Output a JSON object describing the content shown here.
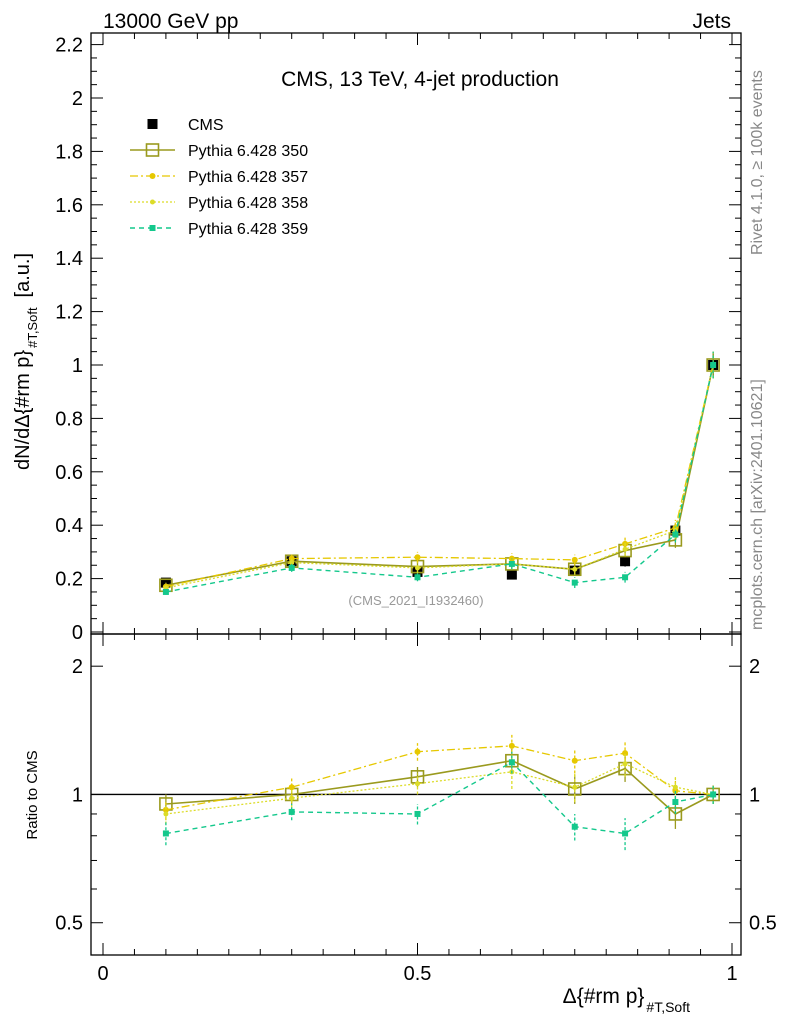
{
  "header": {
    "left": "13000 GeV pp",
    "right": "Jets"
  },
  "side_labels": {
    "rivet": "Rivet 4.1.0, ≥ 100k events",
    "mcplots": "mcplots.cern.ch [arXiv:2401.10621]"
  },
  "colors": {
    "cms": "#000000",
    "p350": "#9a9a1e",
    "p357": "#e6c800",
    "p358": "#dcdc28",
    "p359": "#14c88c"
  },
  "chart_data": [
    {
      "type": "line",
      "panel": "main",
      "title": "CMS, 13 TeV, 4-jet production",
      "ylabel": "dN/dΔ{#rm p}",
      "ylabel_sub": "#T,Soft",
      "ylabel_unit": "[a.u.]",
      "watermark": "(CMS_2021_I1932460)",
      "xlim": [
        0,
        1
      ],
      "ylim": [
        0,
        2.25
      ],
      "yticks": [
        0,
        0.2,
        0.4,
        0.6,
        0.8,
        1,
        1.2,
        1.4,
        1.6,
        1.8,
        2,
        2.2
      ],
      "ytick_labels": [
        "0",
        "0.2",
        "0.4",
        "0.6",
        "0.8",
        "1",
        "1.2",
        "1.4",
        "1.6",
        "1.8",
        "2",
        "2.2"
      ],
      "x": [
        0.1,
        0.3,
        0.5,
        0.65,
        0.75,
        0.83,
        0.91,
        0.97
      ],
      "series": [
        {
          "key": "cms",
          "name": "CMS",
          "values": [
            0.185,
            0.265,
            0.225,
            0.215,
            0.23,
            0.265,
            0.38,
            1.0
          ],
          "errors": [
            0.015,
            0.02,
            0.02,
            0.015,
            0.02,
            0.02,
            0.025,
            0.04
          ]
        },
        {
          "key": "p350",
          "name": "Pythia 6.428 350",
          "values": [
            0.175,
            0.265,
            0.245,
            0.255,
            0.235,
            0.305,
            0.345,
            1.0
          ],
          "errors": [
            0.01,
            0.015,
            0.02,
            0.02,
            0.02,
            0.025,
            0.03,
            0.05
          ]
        },
        {
          "key": "p357",
          "name": "Pythia 6.428 357",
          "values": [
            0.17,
            0.275,
            0.28,
            0.275,
            0.27,
            0.33,
            0.39,
            1.0
          ],
          "errors": [
            0.01,
            0.015,
            0.02,
            0.02,
            0.02,
            0.025,
            0.03,
            0.05
          ]
        },
        {
          "key": "p358",
          "name": "Pythia 6.428 358",
          "values": [
            0.165,
            0.26,
            0.24,
            0.255,
            0.235,
            0.31,
            0.38,
            1.0
          ],
          "errors": [
            0.01,
            0.015,
            0.02,
            0.02,
            0.02,
            0.025,
            0.03,
            0.05
          ]
        },
        {
          "key": "p359",
          "name": "Pythia 6.428 359",
          "values": [
            0.15,
            0.24,
            0.205,
            0.255,
            0.185,
            0.205,
            0.365,
            1.0
          ],
          "errors": [
            0.01,
            0.015,
            0.015,
            0.02,
            0.02,
            0.02,
            0.03,
            0.05
          ]
        }
      ]
    },
    {
      "type": "line",
      "panel": "ratio",
      "ylabel": "Ratio to CMS",
      "xlabel": "Δ{#rm p}",
      "xlabel_sub": "#T,Soft",
      "xlim": [
        0,
        1
      ],
      "ylim": [
        0.42,
        2.38
      ],
      "log_y": true,
      "reference": 1,
      "xticks": [
        0,
        0.5,
        1
      ],
      "xtick_labels": [
        "0",
        "0.5",
        "1"
      ],
      "yticks": [
        0.5,
        1,
        2
      ],
      "ytick_labels": [
        "0.5",
        "1",
        "2"
      ],
      "x": [
        0.1,
        0.3,
        0.5,
        0.65,
        0.75,
        0.83,
        0.91,
        0.97
      ],
      "series": [
        {
          "key": "p350",
          "name": "Pythia 6.428 350",
          "values": [
            0.95,
            1.0,
            1.1,
            1.2,
            1.03,
            1.15,
            0.9,
            1.0
          ],
          "errors": [
            0.05,
            0.05,
            0.06,
            0.08,
            0.08,
            0.08,
            0.07,
            0.05
          ]
        },
        {
          "key": "p357",
          "name": "Pythia 6.428 357",
          "values": [
            0.92,
            1.04,
            1.26,
            1.3,
            1.2,
            1.25,
            1.02,
            1.0
          ],
          "errors": [
            0.05,
            0.05,
            0.06,
            0.08,
            0.08,
            0.08,
            0.07,
            0.05
          ]
        },
        {
          "key": "p358",
          "name": "Pythia 6.428 358",
          "values": [
            0.9,
            0.98,
            1.06,
            1.13,
            1.04,
            1.18,
            1.04,
            1.0
          ],
          "errors": [
            0.05,
            0.05,
            0.06,
            0.1,
            0.08,
            0.08,
            0.07,
            0.05
          ]
        },
        {
          "key": "p359",
          "name": "Pythia 6.428 359",
          "values": [
            0.81,
            0.91,
            0.9,
            1.19,
            0.84,
            0.81,
            0.96,
            1.0
          ],
          "errors": [
            0.05,
            0.04,
            0.05,
            0.07,
            0.06,
            0.07,
            0.06,
            0.05
          ]
        }
      ]
    }
  ]
}
